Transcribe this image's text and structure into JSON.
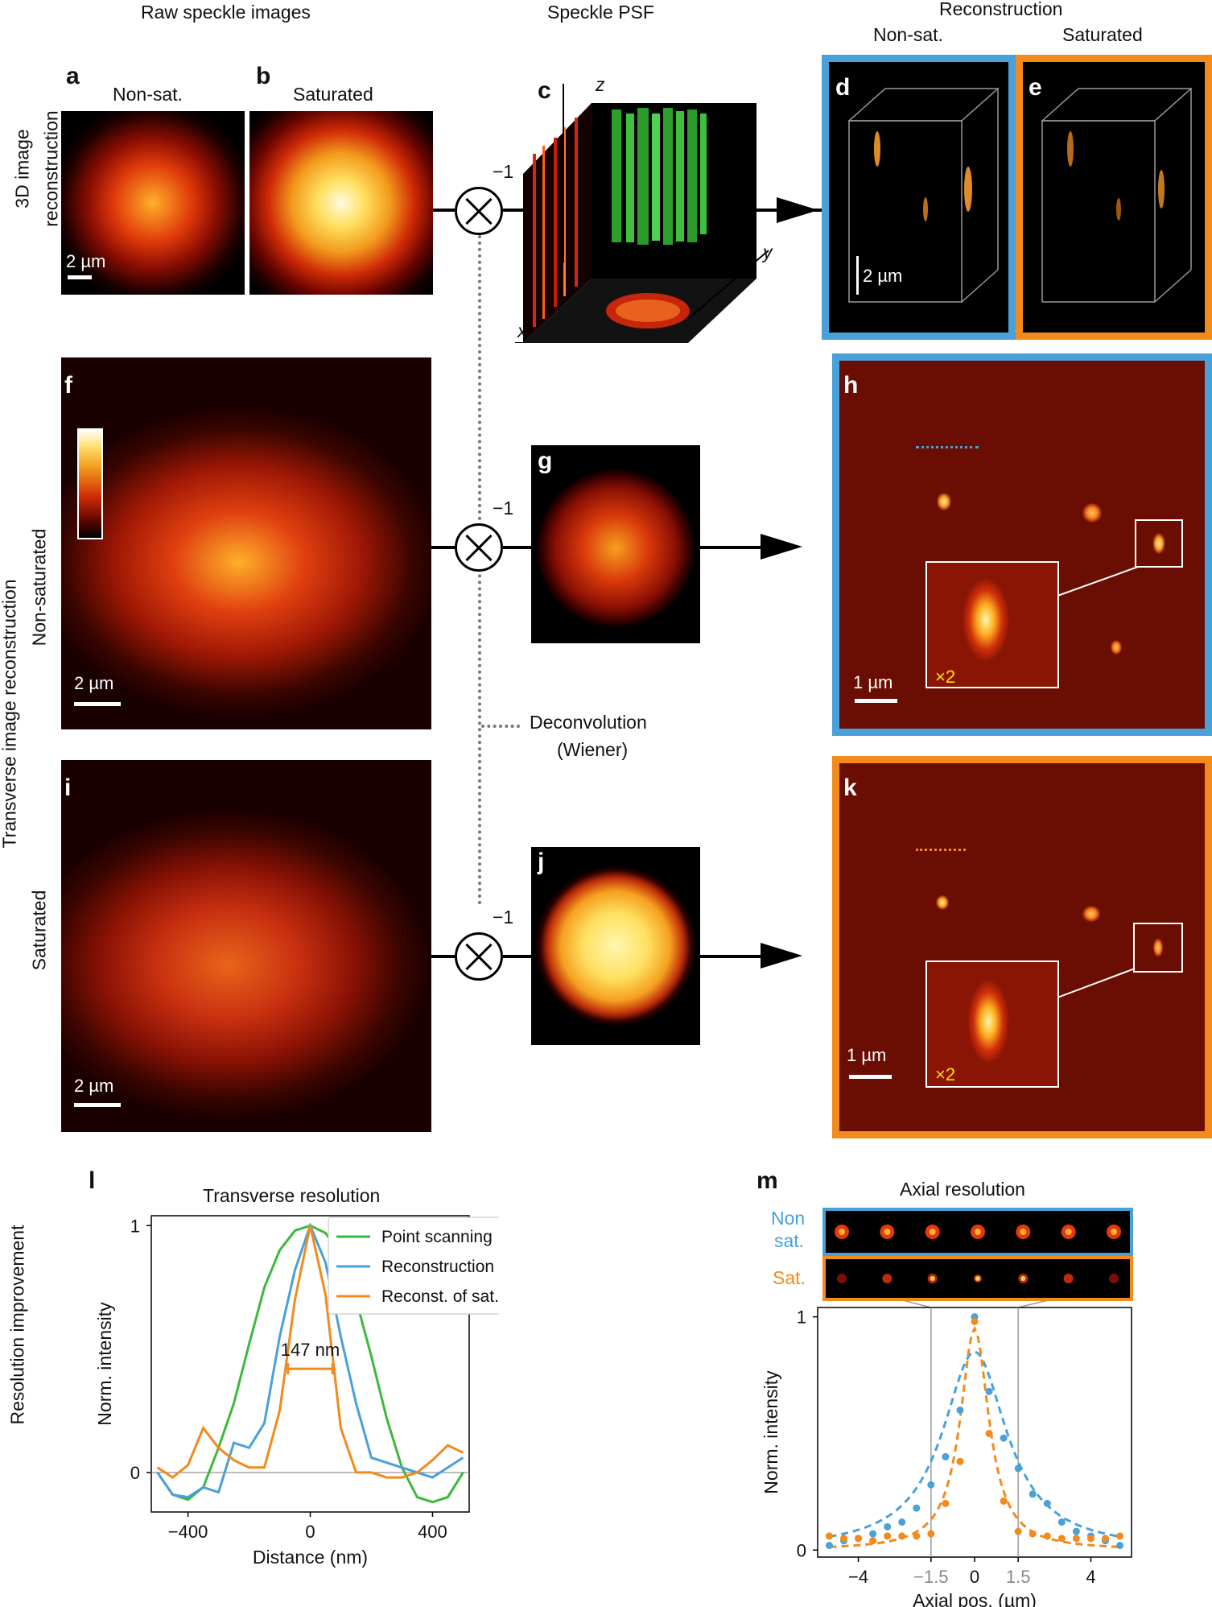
{
  "headers": {
    "raw": "Raw speckle images",
    "psf": "Speckle PSF",
    "recon": "Reconstruction",
    "recon_nonsat": "Non-sat.",
    "recon_sat": "Saturated"
  },
  "row_labels": {
    "r1_line1": "3D image",
    "r1_line2": "reconstruction",
    "transverse": "Transverse image reconstruction",
    "nonsat": "Non-saturated",
    "sat": "Saturated",
    "resolution": "Resolution improvement"
  },
  "panels": {
    "a": "a",
    "b": "b",
    "c": "c",
    "d": "d",
    "e": "e",
    "f": "f",
    "g": "g",
    "h": "h",
    "i": "i",
    "j": "j",
    "k": "k",
    "l": "l",
    "m": "m"
  },
  "panel_titles": {
    "a": "Non-sat.",
    "b": "Saturated"
  },
  "operators": {
    "inverse": "−1"
  },
  "axes3d": {
    "z": "z",
    "y": "y",
    "x": "x"
  },
  "scalebars": {
    "a": "2 µm",
    "d": "2 µm",
    "f": "2 µm",
    "i": "2 µm",
    "h": "1 µm",
    "k": "1 µm"
  },
  "zoom": {
    "h": "×2",
    "k": "×2"
  },
  "deconv": {
    "line1": "Deconvolution",
    "line2": "(Wiener)"
  },
  "colors": {
    "blue": "#4aa0d8",
    "orange": "#f28a1c",
    "green": "#3cb93c"
  },
  "chart_data": [
    {
      "type": "line",
      "title": "Transverse resolution",
      "xlabel": "Distance (nm)",
      "ylabel": "Norm. intensity",
      "xlim": [
        -520,
        520
      ],
      "ylim": [
        -0.16,
        1.04
      ],
      "xticks": [
        -400,
        0,
        400
      ],
      "yticks": [
        0,
        1
      ],
      "annotation": "147 nm",
      "annotation_span": [
        -73,
        73
      ],
      "series": [
        {
          "name": "Point scanning",
          "color": "#3cb93c",
          "x": [
            -500,
            -450,
            -400,
            -350,
            -300,
            -250,
            -200,
            -150,
            -100,
            -50,
            0,
            50,
            100,
            150,
            200,
            250,
            300,
            350,
            400,
            450,
            500
          ],
          "y": [
            0.0,
            -0.09,
            -0.11,
            -0.06,
            0.1,
            0.28,
            0.52,
            0.75,
            0.9,
            0.98,
            1.0,
            0.97,
            0.88,
            0.7,
            0.47,
            0.22,
            0.02,
            -0.1,
            -0.12,
            -0.1,
            0.0
          ]
        },
        {
          "name": "Reconstruction",
          "color": "#4aa0d8",
          "x": [
            -500,
            -450,
            -400,
            -350,
            -300,
            -250,
            -200,
            -150,
            -100,
            -50,
            0,
            50,
            100,
            150,
            200,
            250,
            300,
            350,
            400,
            450,
            500
          ],
          "y": [
            0.0,
            -0.09,
            -0.1,
            -0.06,
            -0.08,
            0.12,
            0.1,
            0.2,
            0.55,
            0.82,
            1.0,
            0.85,
            0.55,
            0.28,
            0.06,
            0.04,
            0.02,
            0.0,
            -0.02,
            0.02,
            0.06
          ]
        },
        {
          "name": "Reconst. of sat.",
          "color": "#f28a1c",
          "x": [
            -500,
            -450,
            -400,
            -350,
            -300,
            -250,
            -200,
            -150,
            -100,
            -50,
            0,
            50,
            100,
            150,
            200,
            250,
            300,
            350,
            400,
            450,
            500
          ],
          "y": [
            0.02,
            -0.02,
            0.03,
            0.18,
            0.1,
            0.05,
            0.02,
            0.02,
            0.25,
            0.7,
            1.0,
            0.72,
            0.18,
            0.0,
            0.0,
            -0.02,
            -0.02,
            0.0,
            0.05,
            0.11,
            0.08
          ]
        }
      ]
    },
    {
      "type": "scatter",
      "title": "Axial resolution",
      "xlabel": "Axial pos. (µm)",
      "ylabel": "Norm. intensity",
      "xlim": [
        -5.4,
        5.4
      ],
      "ylim": [
        -0.03,
        1.04
      ],
      "xticks": [
        -4,
        -1.5,
        0,
        1.5,
        4
      ],
      "yticks": [
        0,
        1
      ],
      "strip_labels": {
        "nonsat_line1": "Non",
        "nonsat_line2": "sat.",
        "sat": "Sat."
      },
      "series": [
        {
          "name": "Non sat.",
          "color": "#4aa0d8",
          "x": [
            -5,
            -4.5,
            -4,
            -3.5,
            -3,
            -2.5,
            -2,
            -1.5,
            -1,
            -0.5,
            0,
            0.5,
            1,
            1.5,
            2,
            2.5,
            3,
            3.5,
            4,
            4.5,
            5
          ],
          "y": [
            0.02,
            0.04,
            0.05,
            0.07,
            0.1,
            0.12,
            0.18,
            0.28,
            0.4,
            0.6,
            1.0,
            0.68,
            0.48,
            0.35,
            0.24,
            0.2,
            0.12,
            0.08,
            0.06,
            0.04,
            0.02
          ]
        },
        {
          "name": "Sat.",
          "color": "#f28a1c",
          "x": [
            -5,
            -4.5,
            -4,
            -3.5,
            -3,
            -2.5,
            -2,
            -1.5,
            -1,
            -0.5,
            0,
            0.5,
            1,
            1.5,
            2,
            2.5,
            3,
            3.5,
            4,
            4.5,
            5
          ],
          "y": [
            0.06,
            0.05,
            0.05,
            0.04,
            0.06,
            0.06,
            0.06,
            0.07,
            0.2,
            0.38,
            0.98,
            0.5,
            0.21,
            0.08,
            0.07,
            0.06,
            0.05,
            0.05,
            0.05,
            0.05,
            0.06
          ]
        }
      ]
    }
  ]
}
